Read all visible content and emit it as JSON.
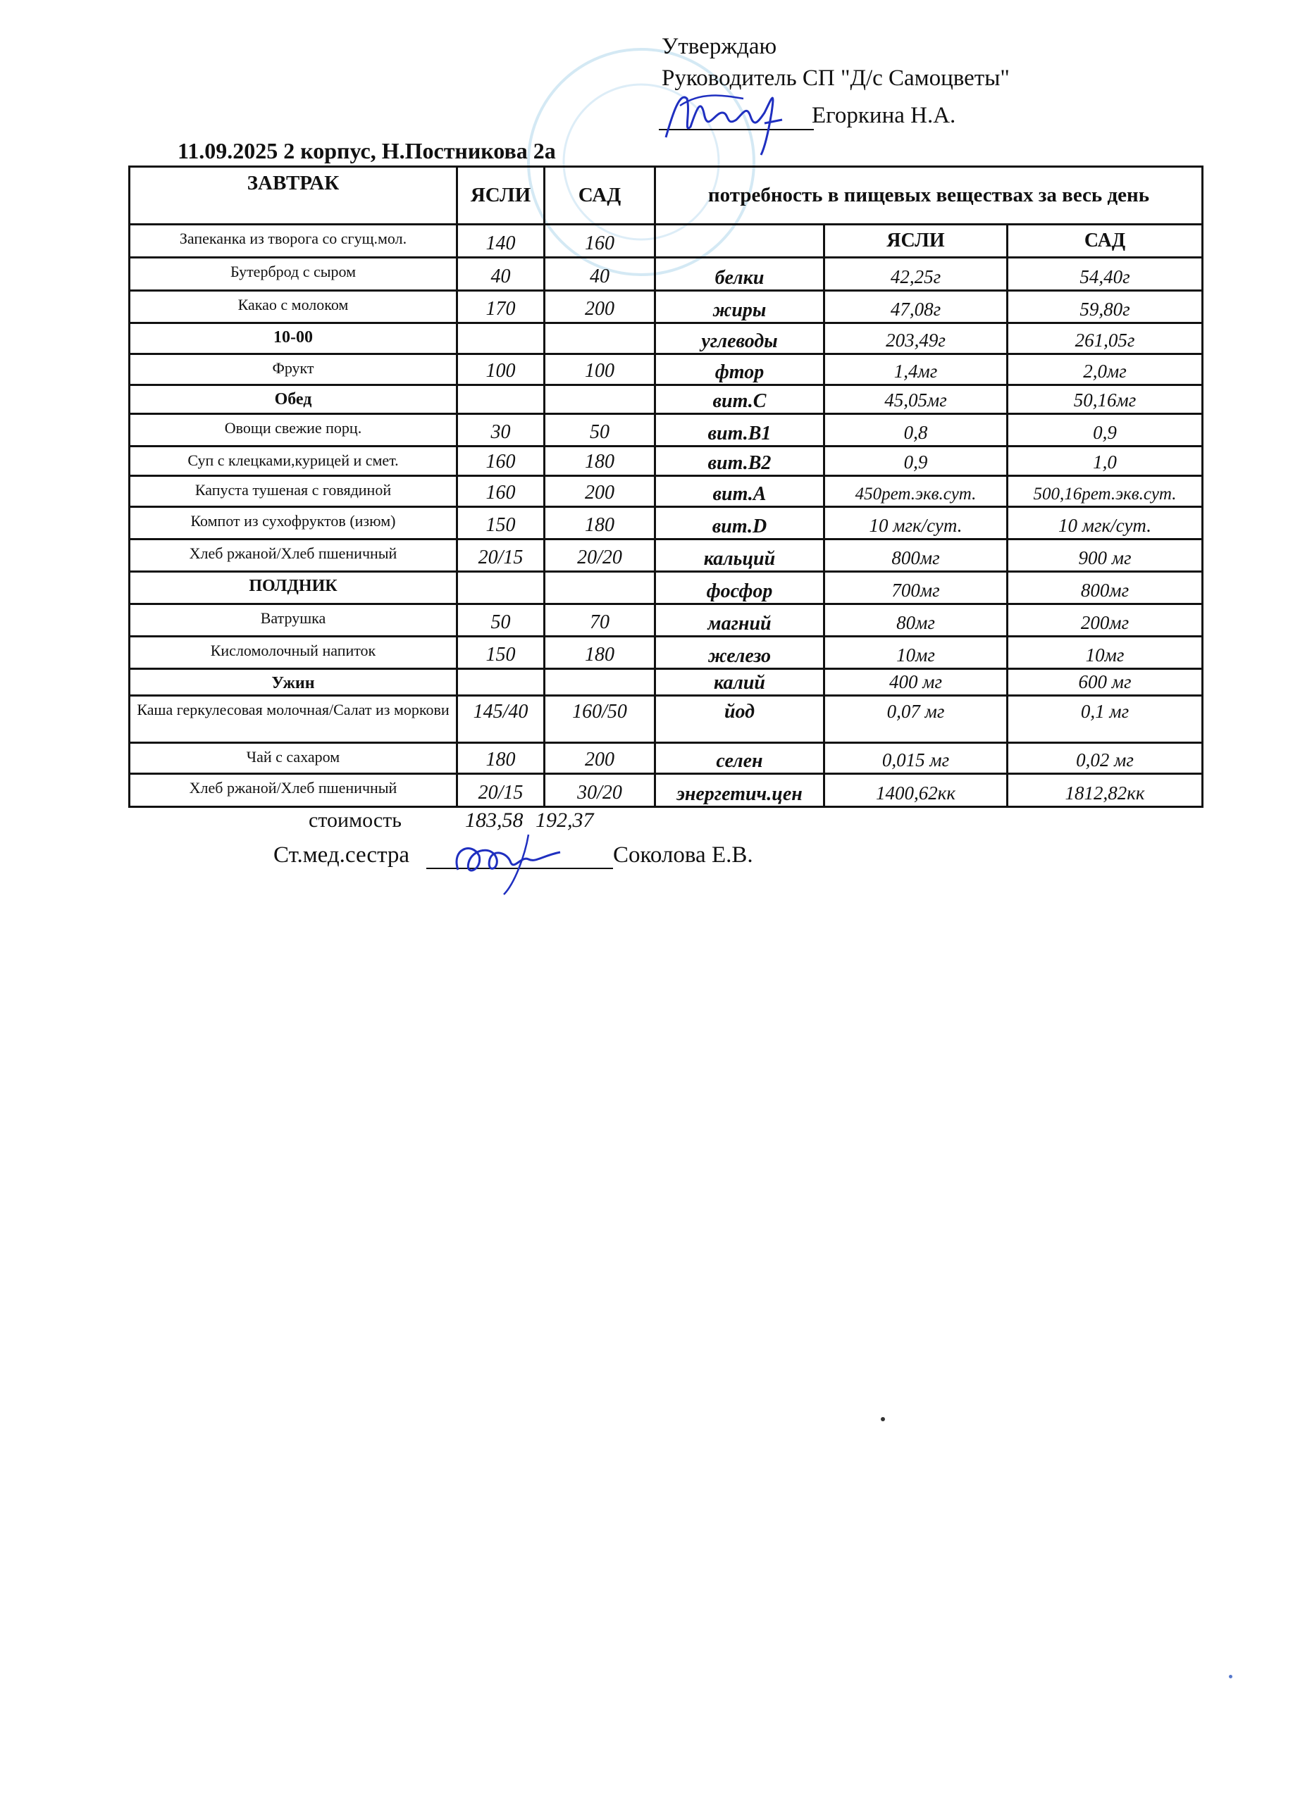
{
  "header": {
    "approve": "Утверждаю",
    "role": "Руководитель СП \"Д/с Самоцветы\"",
    "name": "Егоркина Н.А.",
    "date_title": "11.09.2025 2 корпус, Н.Постникова 2а"
  },
  "table": {
    "col_meal": "ЗАВТРАК",
    "col_yasli": "ЯСЛИ",
    "col_sad": "САД",
    "col_needs": "потребность в пищевых веществах за весь день",
    "sub_yasli": "ЯСЛИ",
    "sub_sad": "САД",
    "rows": [
      {
        "dish": "Запеканка из творога со сгущ.мол.",
        "yasli": "140",
        "sad": "160",
        "nutrient": "",
        "n_yasli": "",
        "n_sad": "",
        "sub": true
      },
      {
        "dish": "Бутерброд с  сыром",
        "yasli": "40",
        "sad": "40",
        "nutrient": "белки",
        "n_yasli": "42,25г",
        "n_sad": "54,40г"
      },
      {
        "dish": "Какао с молоком",
        "yasli": "170",
        "sad": "200",
        "nutrient": "жиры",
        "n_yasli": "47,08г",
        "n_sad": "59,80г"
      },
      {
        "dish": "10-00",
        "yasli": "",
        "sad": "",
        "nutrient": "углеводы",
        "n_yasli": "203,49г",
        "n_sad": "261,05г",
        "section": true
      },
      {
        "dish": "Фрукт",
        "yasli": "100",
        "sad": "100",
        "nutrient": "фтор",
        "n_yasli": "1,4мг",
        "n_sad": "2,0мг"
      },
      {
        "dish": "Обед",
        "yasli": "",
        "sad": "",
        "nutrient": "вит.С",
        "n_yasli": "45,05мг",
        "n_sad": "50,16мг",
        "section": true
      },
      {
        "dish": "Овощи свежие порц.",
        "yasli": "30",
        "sad": "50",
        "nutrient": "вит.В1",
        "n_yasli": "0,8",
        "n_sad": "0,9"
      },
      {
        "dish": "Суп с клецками,курицей и смет.",
        "yasli": "160",
        "sad": "180",
        "nutrient": "вит.В2",
        "n_yasli": "0,9",
        "n_sad": "1,0"
      },
      {
        "dish": "Капуста тушеная с говядиной",
        "yasli": "160",
        "sad": "200",
        "nutrient": "вит.А",
        "n_yasli": "450рет.экв.сут.",
        "n_sad": "500,16рет.экв.сут.",
        "small": true
      },
      {
        "dish": "Компот из сухофруктов (изюм)",
        "yasli": "150",
        "sad": "180",
        "nutrient": "вит.D",
        "n_yasli": "10 мгк/сут.",
        "n_sad": "10 мгк/сут."
      },
      {
        "dish": "Хлеб ржаной/Хлеб пшеничный",
        "yasli": "20/15",
        "sad": "20/20",
        "nutrient": "кальций",
        "n_yasli": "800мг",
        "n_sad": "900 мг"
      },
      {
        "dish": "ПОЛДНИК",
        "yasli": "",
        "sad": "",
        "nutrient": "фосфор",
        "n_yasli": "700мг",
        "n_sad": "800мг",
        "section": true
      },
      {
        "dish": "Ватрушка",
        "yasli": "50",
        "sad": "70",
        "nutrient": "магний",
        "n_yasli": "80мг",
        "n_sad": "200мг"
      },
      {
        "dish": "Кисломолочный напиток",
        "yasli": "150",
        "sad": "180",
        "nutrient": "железо",
        "n_yasli": "10мг",
        "n_sad": "10мг"
      },
      {
        "dish": "Ужин",
        "yasli": "",
        "sad": "",
        "nutrient": "калий",
        "n_yasli": "400 мг",
        "n_sad": "600 мг",
        "section": true
      },
      {
        "dish": "Каша геркулесовая молочная/Салат из моркови",
        "yasli": "145/40",
        "sad": "160/50",
        "nutrient": "йод",
        "n_yasli": "0,07 мг",
        "n_sad": "0,1 мг",
        "wrap": true
      },
      {
        "dish": "Чай с сахаром",
        "yasli": "180",
        "sad": "200",
        "nutrient": "селен",
        "n_yasli": "0,015 мг",
        "n_sad": "0,02 мг"
      },
      {
        "dish": "Хлеб ржаной/Хлеб пшеничный",
        "yasli": "20/15",
        "sad": "30/20",
        "nutrient": "энергетич.цен",
        "n_yasli": "1400,62кк",
        "n_sad": "1812,82кк"
      }
    ]
  },
  "footer": {
    "cost_label": "стоимость",
    "cost_yasli": "183,58",
    "cost_sad": "192,37",
    "nurse_label": "Ст.мед.сестра",
    "nurse_name": "Соколова Е.В."
  },
  "colors": {
    "ink": "#111111",
    "signature": "#1f2fc0",
    "stamp": "#a9d3ea"
  }
}
